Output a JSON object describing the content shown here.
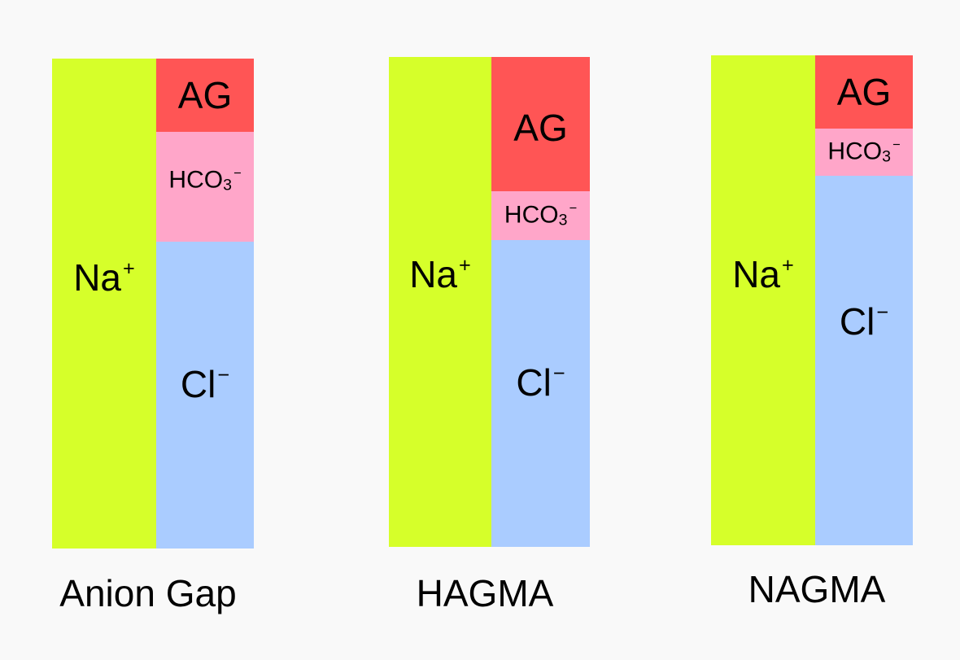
{
  "colors": {
    "background": "#f9f9f9",
    "sodium": "#d6ff2a",
    "anion_gap": "#ff5555",
    "bicarbonate": "#ffa6c9",
    "chloride": "#aaccff"
  },
  "panels": [
    {
      "title": "Anion Gap",
      "na": {
        "main": "Na",
        "sup": "+"
      },
      "ag": "AG",
      "hco3": {
        "main": "HCO",
        "sub": "3",
        "sup": "−"
      },
      "cl": {
        "main": "Cl",
        "sup": "−"
      }
    },
    {
      "title": "HAGMA",
      "na": {
        "main": "Na",
        "sup": "+"
      },
      "ag": "AG",
      "hco3": {
        "main": "HCO",
        "sub": "3",
        "sup": "−"
      },
      "cl": {
        "main": "Cl",
        "sup": "−"
      }
    },
    {
      "title": "NAGMA",
      "na": {
        "main": "Na",
        "sup": "+"
      },
      "ag": "AG",
      "hco3": {
        "main": "HCO",
        "sub": "3",
        "sup": "−"
      },
      "cl": {
        "main": "Cl",
        "sup": "−"
      }
    }
  ]
}
